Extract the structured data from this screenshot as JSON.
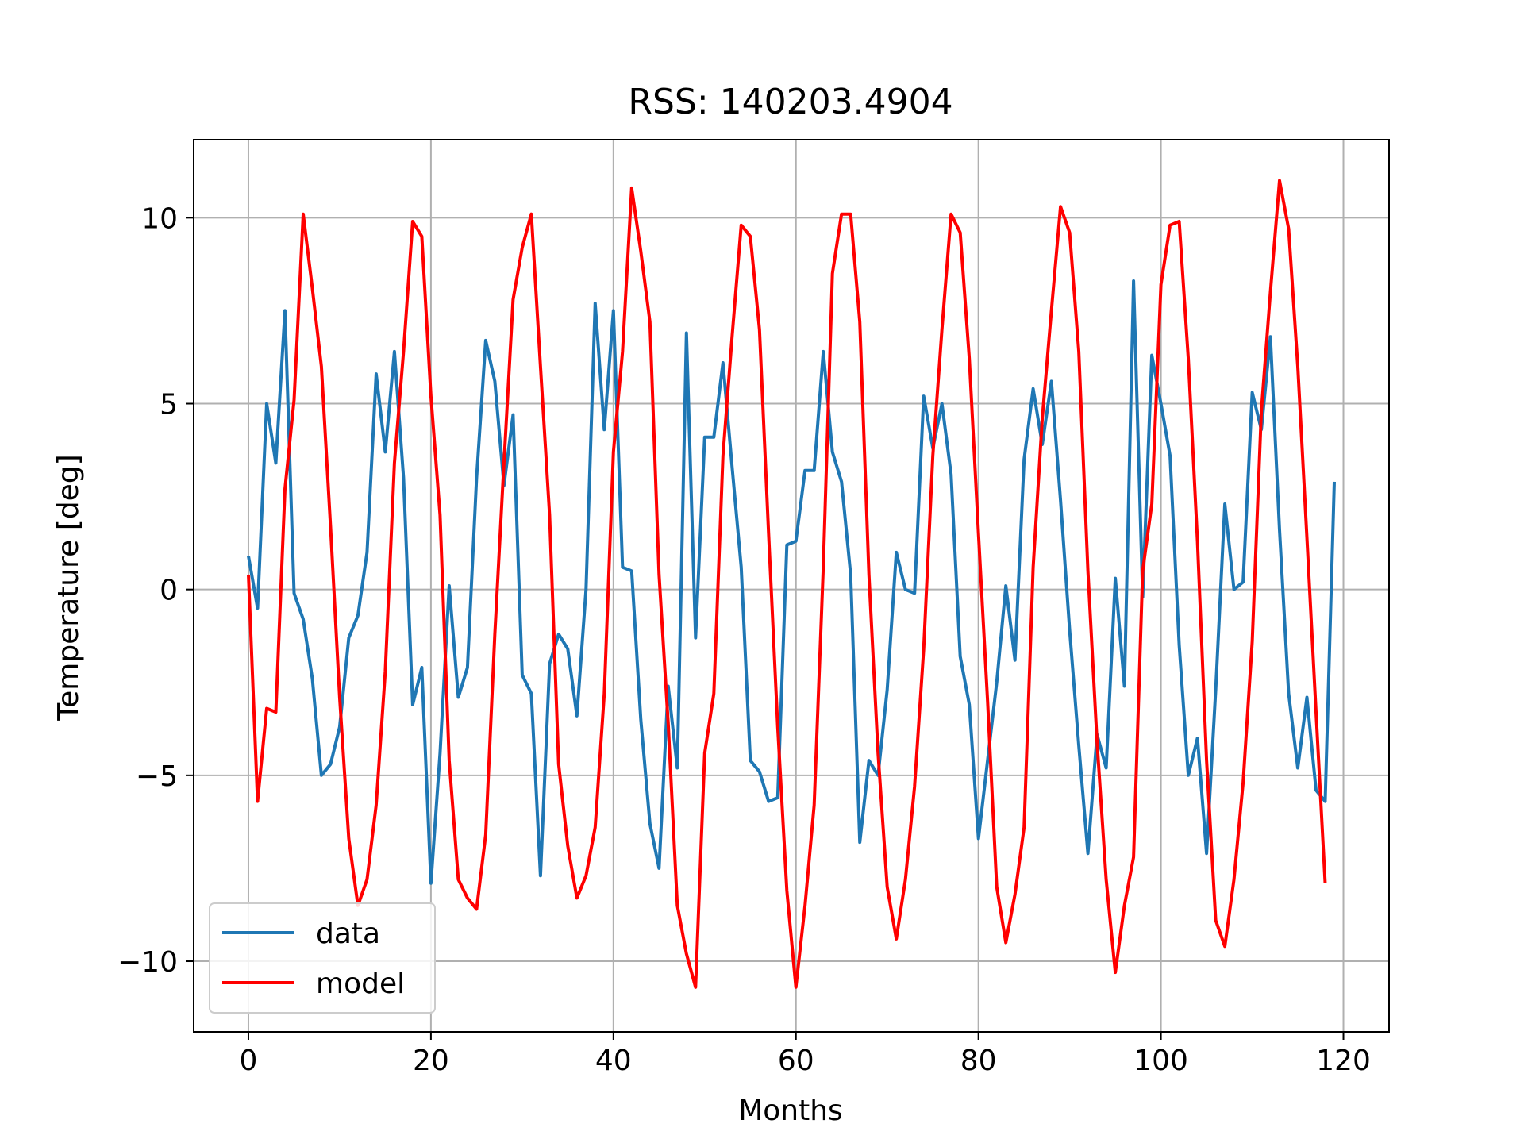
{
  "chart_data": {
    "type": "line",
    "title": "RSS: 140203.4904",
    "xlabel": "Months",
    "ylabel": "Temperature [deg]",
    "xlim": [
      -6,
      125
    ],
    "ylim": [
      -11.9,
      12.1
    ],
    "xticks": [
      0,
      20,
      40,
      60,
      80,
      100,
      120
    ],
    "yticks": [
      -10,
      -5,
      0,
      5,
      10
    ],
    "ytick_labels": [
      "−10",
      "−5",
      "0",
      "5",
      "10"
    ],
    "grid": true,
    "legend": "lower-left",
    "series": [
      {
        "name": "data",
        "color": "#1f77b4",
        "values": [
          0.9,
          -0.5,
          5.0,
          3.4,
          7.5,
          -0.1,
          -0.8,
          -2.4,
          -5.0,
          -4.7,
          -3.7,
          -1.3,
          -0.7,
          1.0,
          5.8,
          3.7,
          6.4,
          3.0,
          -3.1,
          -2.1,
          -7.9,
          -4.4,
          0.1,
          -2.9,
          -2.1,
          3.0,
          6.7,
          5.6,
          2.8,
          4.7,
          -2.3,
          -2.8,
          -7.7,
          -2.0,
          -1.2,
          -1.6,
          -3.4,
          0.0,
          7.7,
          4.3,
          7.5,
          0.6,
          0.5,
          -3.5,
          -6.3,
          -7.5,
          -2.6,
          -4.8,
          6.9,
          -1.3,
          4.1,
          4.1,
          6.1,
          3.3,
          0.6,
          -4.6,
          -4.9,
          -5.7,
          -5.6,
          1.2,
          1.3,
          3.2,
          3.2,
          6.4,
          3.7,
          2.9,
          0.4,
          -6.8,
          -4.6,
          -5.0,
          -2.7,
          1.0,
          0.0,
          -0.1,
          5.2,
          3.8,
          5.0,
          3.1,
          -1.8,
          -3.1,
          -6.7,
          -4.6,
          -2.5,
          0.1,
          -1.9,
          3.5,
          5.4,
          3.9,
          5.6,
          2.4,
          -1.1,
          -4.2,
          -7.1,
          -3.9,
          -4.8,
          0.3,
          -2.6,
          8.3,
          -0.2,
          6.3,
          5.0,
          3.6,
          -1.5,
          -5.0,
          -4.0,
          -7.1,
          -2.7,
          2.3,
          0.0,
          0.2,
          5.3,
          4.3,
          6.8,
          1.6,
          -2.8,
          -4.8,
          -2.9,
          -5.4,
          -5.7,
          2.9
        ]
      },
      {
        "name": "model",
        "color": "#ff0000",
        "values": [
          0.4,
          -5.7,
          -3.2,
          -3.3,
          2.7,
          5.1,
          10.1,
          8.1,
          6.0,
          1.7,
          -2.9,
          -6.7,
          -8.5,
          -7.8,
          -5.8,
          -2.2,
          3.4,
          6.4,
          9.9,
          9.5,
          5.2,
          2.0,
          -4.6,
          -7.8,
          -8.3,
          -8.6,
          -6.6,
          -1.2,
          3.4,
          7.8,
          9.2,
          10.1,
          6.0,
          2.0,
          -4.7,
          -6.9,
          -8.3,
          -7.7,
          -6.4,
          -2.8,
          3.7,
          6.4,
          10.8,
          9.1,
          7.2,
          0.4,
          -3.6,
          -8.5,
          -9.8,
          -10.7,
          -4.4,
          -2.8,
          3.6,
          6.8,
          9.8,
          9.5,
          7.0,
          1.5,
          -3.7,
          -8.1,
          -10.7,
          -8.5,
          -5.8,
          0.6,
          8.5,
          10.1,
          10.1,
          7.2,
          0.4,
          -4.4,
          -8.0,
          -9.4,
          -7.8,
          -5.3,
          -1.6,
          3.6,
          7.0,
          10.1,
          9.6,
          6.2,
          1.5,
          -3.0,
          -8.0,
          -9.5,
          -8.2,
          -6.4,
          0.6,
          4.6,
          7.5,
          10.3,
          9.6,
          6.4,
          0.5,
          -4.1,
          -7.8,
          -10.3,
          -8.5,
          -7.2,
          0.5,
          2.3,
          8.2,
          9.8,
          9.9,
          6.2,
          1.3,
          -4.6,
          -8.9,
          -9.6,
          -7.8,
          -5.2,
          -1.4,
          4.8,
          8.0,
          11.0,
          9.7,
          6.0,
          1.4,
          -3.3,
          -7.9
        ]
      }
    ]
  }
}
